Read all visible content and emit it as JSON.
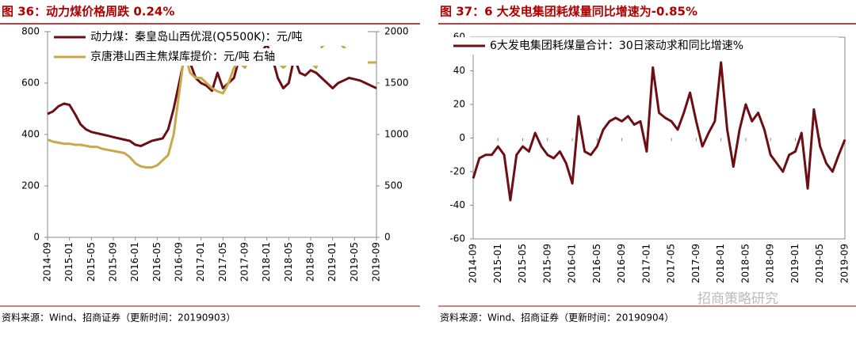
{
  "chart_data": [
    {
      "type": "line",
      "title": "图 36：动力煤价格周跌 0.24%",
      "source": "资料来源：Wind、招商证券（更新时间：20190903）",
      "x": [
        "2014-09",
        "2014-10",
        "2014-11",
        "2014-12",
        "2015-01",
        "2015-02",
        "2015-03",
        "2015-04",
        "2015-05",
        "2015-06",
        "2015-07",
        "2015-08",
        "2015-09",
        "2015-10",
        "2015-11",
        "2015-12",
        "2016-01",
        "2016-02",
        "2016-03",
        "2016-04",
        "2016-05",
        "2016-06",
        "2016-07",
        "2016-08",
        "2016-09",
        "2016-10",
        "2016-11",
        "2016-12",
        "2017-01",
        "2017-02",
        "2017-03",
        "2017-04",
        "2017-05",
        "2017-06",
        "2017-07",
        "2017-08",
        "2017-09",
        "2017-10",
        "2017-11",
        "2017-12",
        "2018-01",
        "2018-02",
        "2018-03",
        "2018-04",
        "2018-05",
        "2018-06",
        "2018-07",
        "2018-08",
        "2018-09",
        "2018-10",
        "2018-11",
        "2018-12",
        "2019-01",
        "2019-02",
        "2019-03",
        "2019-04",
        "2019-05",
        "2019-06",
        "2019-07",
        "2019-08",
        "2019-09"
      ],
      "xticks": [
        "2014-09",
        "2015-01",
        "2015-05",
        "2015-09",
        "2016-01",
        "2016-05",
        "2016-09",
        "2017-01",
        "2017-05",
        "2017-09",
        "2018-01",
        "2018-05",
        "2018-09",
        "2019-01",
        "2019-05",
        "2019-09"
      ],
      "ylim": [
        0,
        800
      ],
      "yticks": [
        0,
        200,
        400,
        600,
        800
      ],
      "y2lim": [
        0,
        2000
      ],
      "y2ticks": [
        0,
        500,
        1000,
        1500,
        2000
      ],
      "grid": false,
      "series": [
        {
          "name": "动力煤：秦皇岛山西优混(Q5500K)：元/吨",
          "color": "#6b0f14",
          "values": [
            480,
            490,
            510,
            520,
            515,
            480,
            440,
            420,
            410,
            405,
            400,
            395,
            390,
            385,
            380,
            375,
            360,
            355,
            365,
            375,
            380,
            385,
            420,
            500,
            600,
            700,
            680,
            620,
            600,
            590,
            570,
            640,
            580,
            600,
            620,
            700,
            720,
            680,
            700,
            720,
            750,
            700,
            620,
            580,
            600,
            700,
            640,
            630,
            650,
            640,
            620,
            600,
            580,
            600,
            610,
            620,
            615,
            610,
            600,
            590,
            580
          ]
        },
        {
          "name": "京唐港山西主焦煤库提价：元/吨 右轴",
          "color": "#c9a84c",
          "axis": "y2",
          "values": [
            950,
            930,
            920,
            910,
            910,
            900,
            900,
            890,
            880,
            880,
            860,
            850,
            840,
            830,
            820,
            780,
            720,
            690,
            680,
            680,
            700,
            750,
            800,
            1000,
            1400,
            1800,
            1600,
            1550,
            1550,
            1500,
            1450,
            1420,
            1400,
            1500,
            1650,
            1700,
            1650,
            1750,
            1800,
            1800,
            1800,
            1750,
            1700,
            1650,
            1700,
            1750,
            1800,
            1700,
            1700,
            1650,
            1850,
            1900,
            1900,
            1900,
            1850,
            1800,
            1750,
            1700,
            1700,
            1700,
            1700
          ]
        }
      ]
    },
    {
      "type": "line",
      "title": "图 37：6 大发电集团耗煤量同比增速为-0.85%",
      "source": "资料来源：Wind、招商证券（更新时间：20190904）",
      "watermark": "招商策略研究",
      "x": [
        "2014-09",
        "2014-10",
        "2014-11",
        "2014-12",
        "2015-01",
        "2015-02",
        "2015-03",
        "2015-04",
        "2015-05",
        "2015-06",
        "2015-07",
        "2015-08",
        "2015-09",
        "2015-10",
        "2015-11",
        "2015-12",
        "2016-01",
        "2016-02",
        "2016-03",
        "2016-04",
        "2016-05",
        "2016-06",
        "2016-07",
        "2016-08",
        "2016-09",
        "2016-10",
        "2016-11",
        "2016-12",
        "2017-01",
        "2017-02",
        "2017-03",
        "2017-04",
        "2017-05",
        "2017-06",
        "2017-07",
        "2017-08",
        "2017-09",
        "2017-10",
        "2017-11",
        "2017-12",
        "2018-01",
        "2018-02",
        "2018-03",
        "2018-04",
        "2018-05",
        "2018-06",
        "2018-07",
        "2018-08",
        "2018-09",
        "2018-10",
        "2018-11",
        "2018-12",
        "2019-01",
        "2019-02",
        "2019-03",
        "2019-04",
        "2019-05",
        "2019-06",
        "2019-07",
        "2019-08",
        "2019-09"
      ],
      "xticks": [
        "2014-09",
        "2015-01",
        "2015-05",
        "2015-09",
        "2016-01",
        "2016-05",
        "2016-09",
        "2017-01",
        "2017-05",
        "2017-09",
        "2018-01",
        "2018-05",
        "2018-09",
        "2019-01",
        "2019-05",
        "2019-09"
      ],
      "ylim": [
        -60,
        60
      ],
      "yticks": [
        -60,
        -40,
        -20,
        0,
        20,
        40,
        60
      ],
      "grid": false,
      "series": [
        {
          "name": "6大发电集团耗煤量合计：30日滚动求和同比增速%",
          "color": "#6b0f14",
          "values": [
            -24,
            -12,
            -10,
            -10,
            -5,
            -10,
            -37,
            -10,
            -5,
            -8,
            3,
            -5,
            -10,
            -12,
            -8,
            -15,
            -27,
            13,
            -8,
            -10,
            -5,
            5,
            10,
            12,
            10,
            13,
            8,
            10,
            -8,
            42,
            15,
            12,
            10,
            5,
            15,
            27,
            10,
            -5,
            3,
            10,
            45,
            5,
            -17,
            5,
            20,
            10,
            15,
            5,
            -10,
            -15,
            -20,
            -10,
            -8,
            3,
            -30,
            17,
            -5,
            -15,
            -20,
            -10,
            -1
          ]
        }
      ]
    }
  ]
}
